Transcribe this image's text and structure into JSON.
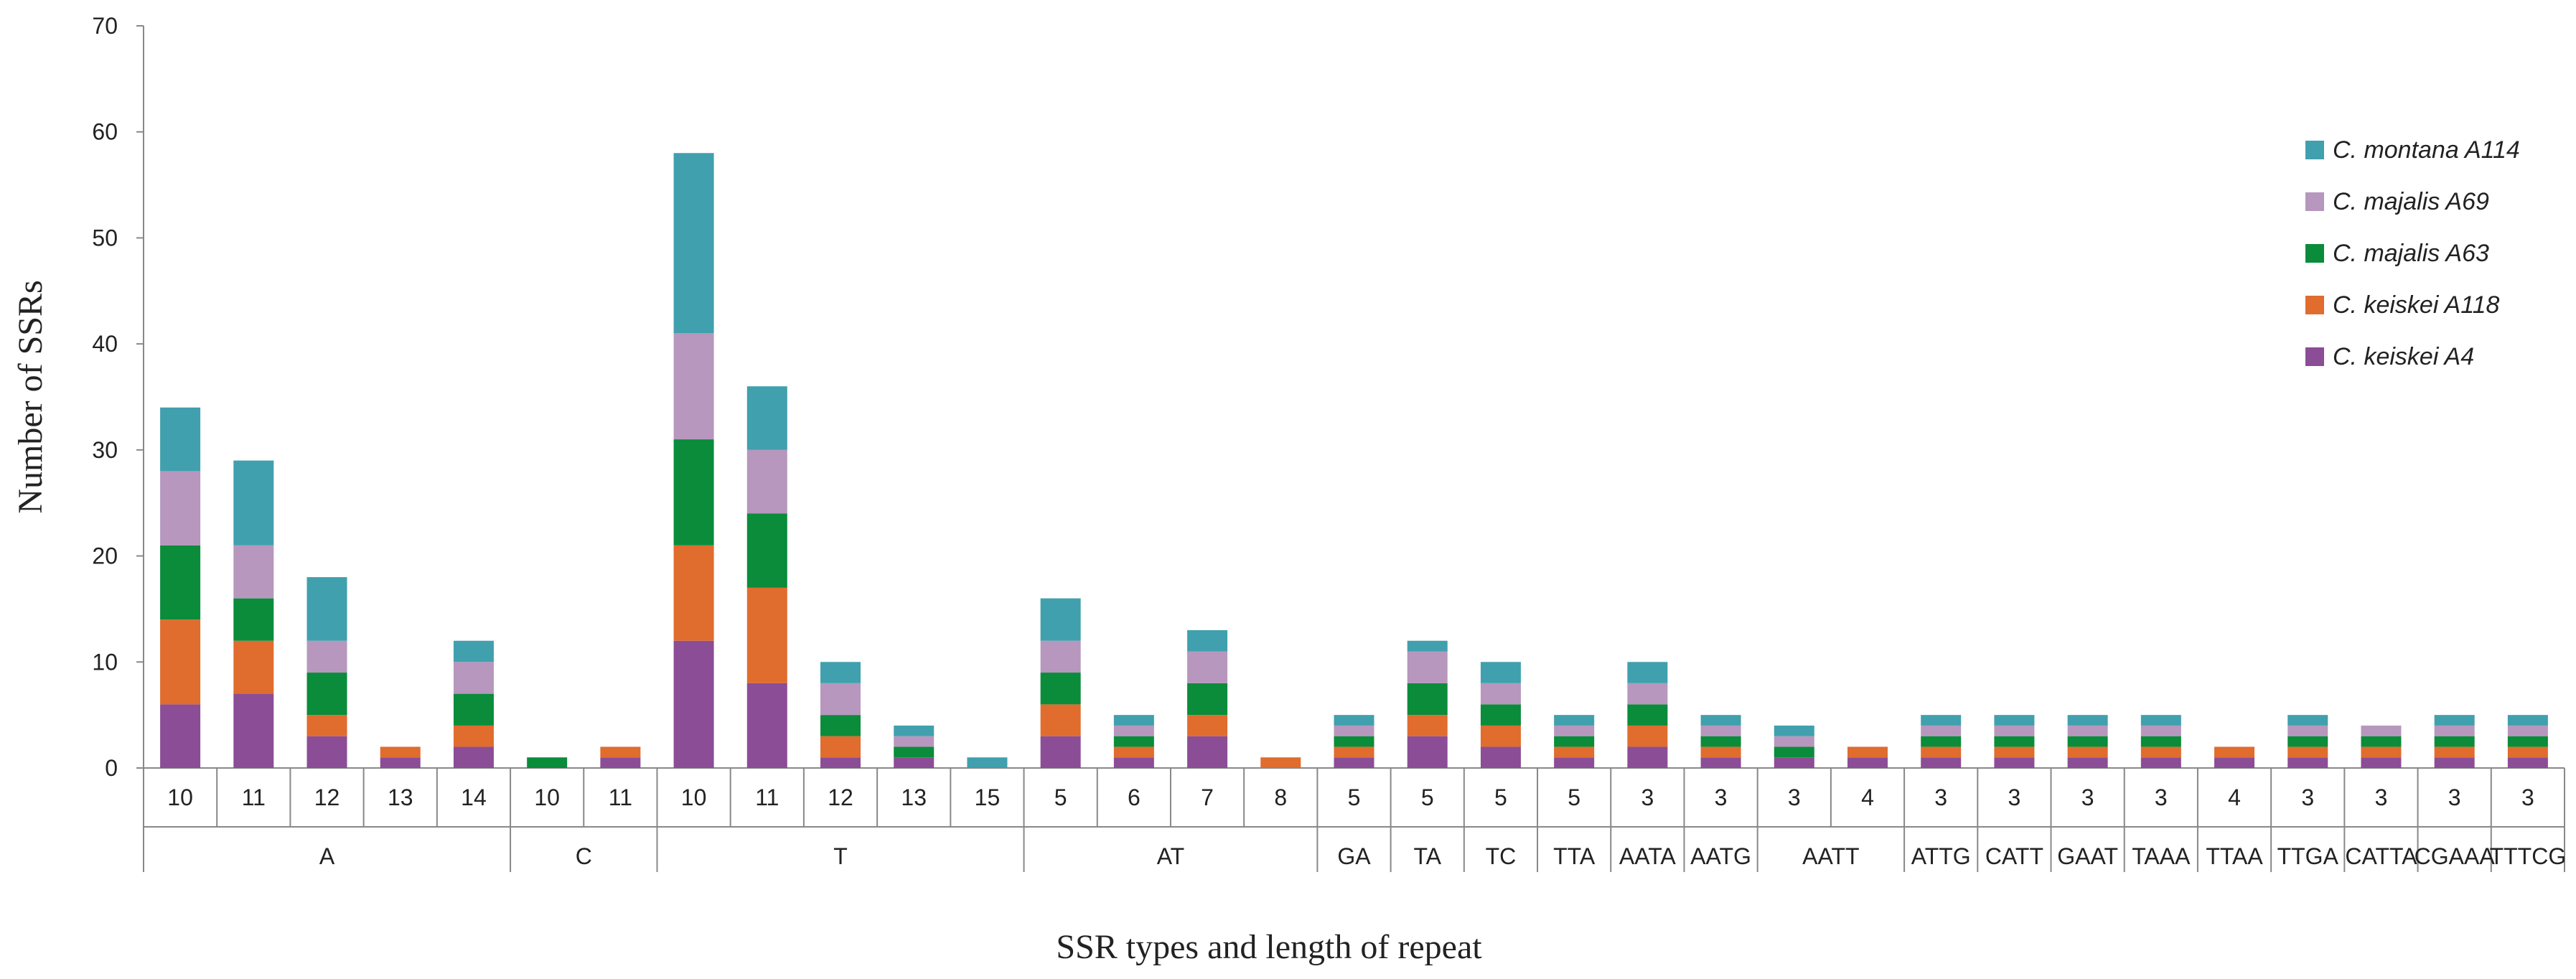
{
  "chart_data": {
    "type": "bar",
    "stacked": true,
    "xlabel": "SSR types and length of repeat",
    "ylabel": "Number of SSRs",
    "ylim": [
      0,
      70
    ],
    "yticks": [
      0,
      10,
      20,
      30,
      40,
      50,
      60,
      70
    ],
    "grid": false,
    "legend_position": "top-right",
    "groups": [
      {
        "name": "A",
        "count": 5
      },
      {
        "name": "C",
        "count": 2
      },
      {
        "name": "T",
        "count": 5
      },
      {
        "name": "AT",
        "count": 4
      },
      {
        "name": "GA",
        "count": 1
      },
      {
        "name": "TA",
        "count": 1
      },
      {
        "name": "TC",
        "count": 1
      },
      {
        "name": "TTA",
        "count": 1
      },
      {
        "name": "AATA",
        "count": 1
      },
      {
        "name": "AATG",
        "count": 1
      },
      {
        "name": "AATT",
        "count": 2
      },
      {
        "name": "ATTG",
        "count": 1
      },
      {
        "name": "CATT",
        "count": 1
      },
      {
        "name": "GAAT",
        "count": 1
      },
      {
        "name": "TAAA",
        "count": 1
      },
      {
        "name": "TTAA",
        "count": 1
      },
      {
        "name": "TTGA",
        "count": 1
      },
      {
        "name": "CATTA",
        "count": 1
      },
      {
        "name": "CGAAA",
        "count": 1
      },
      {
        "name": "TTTCG",
        "count": 1
      }
    ],
    "categories": [
      "10",
      "11",
      "12",
      "13",
      "14",
      "10",
      "11",
      "10",
      "11",
      "12",
      "13",
      "15",
      "5",
      "6",
      "7",
      "8",
      "5",
      "5",
      "5",
      "5",
      "3",
      "3",
      "3",
      "4",
      "3",
      "3",
      "3",
      "3",
      "4",
      "3",
      "3",
      "3",
      "3"
    ],
    "series": [
      {
        "name": "C. keiskei A4",
        "color": "#8b4d96",
        "values": [
          6,
          7,
          3,
          1,
          2,
          0,
          1,
          12,
          8,
          1,
          1,
          0,
          3,
          1,
          3,
          0,
          1,
          3,
          2,
          1,
          2,
          1,
          1,
          1,
          1,
          1,
          1,
          1,
          1,
          1,
          1,
          1,
          1
        ]
      },
      {
        "name": "C. keiskei A118",
        "color": "#e06c2e",
        "values": [
          8,
          5,
          2,
          1,
          2,
          0,
          1,
          9,
          9,
          2,
          0,
          0,
          3,
          1,
          2,
          1,
          1,
          2,
          2,
          1,
          2,
          1,
          0,
          1,
          1,
          1,
          1,
          1,
          1,
          1,
          1,
          1,
          1
        ]
      },
      {
        "name": "C. majalis A63",
        "color": "#0a8c3b",
        "values": [
          7,
          4,
          4,
          0,
          3,
          1,
          0,
          10,
          7,
          2,
          1,
          0,
          3,
          1,
          3,
          0,
          1,
          3,
          2,
          1,
          2,
          1,
          1,
          0,
          1,
          1,
          1,
          1,
          0,
          1,
          1,
          1,
          1
        ]
      },
      {
        "name": "C. majalis A69",
        "color": "#b797bd",
        "values": [
          7,
          5,
          3,
          0,
          3,
          0,
          0,
          10,
          6,
          3,
          1,
          0,
          3,
          1,
          3,
          0,
          1,
          3,
          2,
          1,
          2,
          1,
          1,
          0,
          1,
          1,
          1,
          1,
          0,
          1,
          1,
          1,
          1
        ]
      },
      {
        "name": "C. montana A114",
        "color": "#40a0ae",
        "values": [
          6,
          8,
          6,
          0,
          2,
          0,
          0,
          17,
          6,
          2,
          1,
          1,
          4,
          1,
          2,
          0,
          1,
          1,
          2,
          1,
          2,
          1,
          1,
          0,
          1,
          1,
          1,
          1,
          0,
          1,
          0,
          1,
          1
        ]
      }
    ]
  }
}
